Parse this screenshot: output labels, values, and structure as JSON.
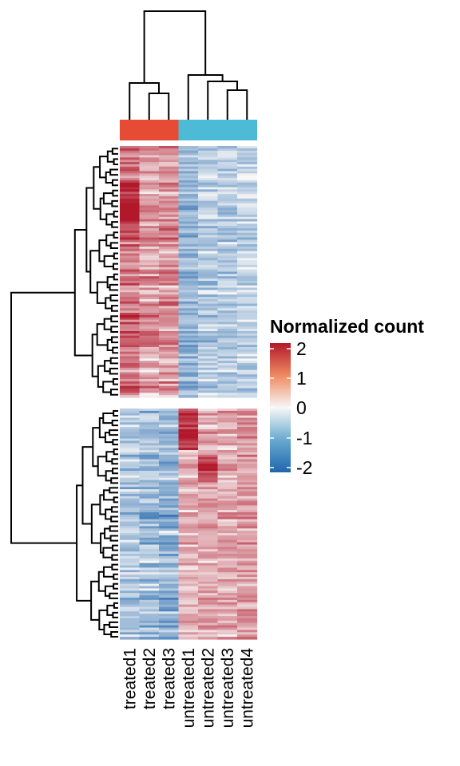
{
  "chart_data": {
    "type": "heatmap",
    "columns": [
      "treated1",
      "treated2",
      "treated3",
      "untreated1",
      "untreated2",
      "untreated3",
      "untreated4"
    ],
    "column_groups": [
      "treated",
      "treated",
      "treated",
      "untreated",
      "untreated",
      "untreated",
      "untreated"
    ],
    "group_colors": {
      "treated": "#E64B35",
      "untreated": "#4DBBD5"
    },
    "row_clusters": [
      {
        "rows": 110,
        "mean": [
          1.2,
          0.8,
          0.9,
          -0.9,
          -0.6,
          -0.6,
          -0.5
        ]
      },
      {
        "rows": 100,
        "mean": [
          -0.6,
          -0.8,
          -0.9,
          0.6,
          0.7,
          0.7,
          0.8
        ]
      }
    ],
    "color_scale": {
      "min": -2,
      "max": 2,
      "colors": [
        "#2166AC",
        "#F7F7F7",
        "#B2182B"
      ]
    },
    "legend": {
      "title": "Normalized count",
      "ticks": [
        "2",
        "1",
        "0",
        "-1",
        "-2"
      ]
    },
    "column_dendrogram": true,
    "row_dendrogram": true
  }
}
